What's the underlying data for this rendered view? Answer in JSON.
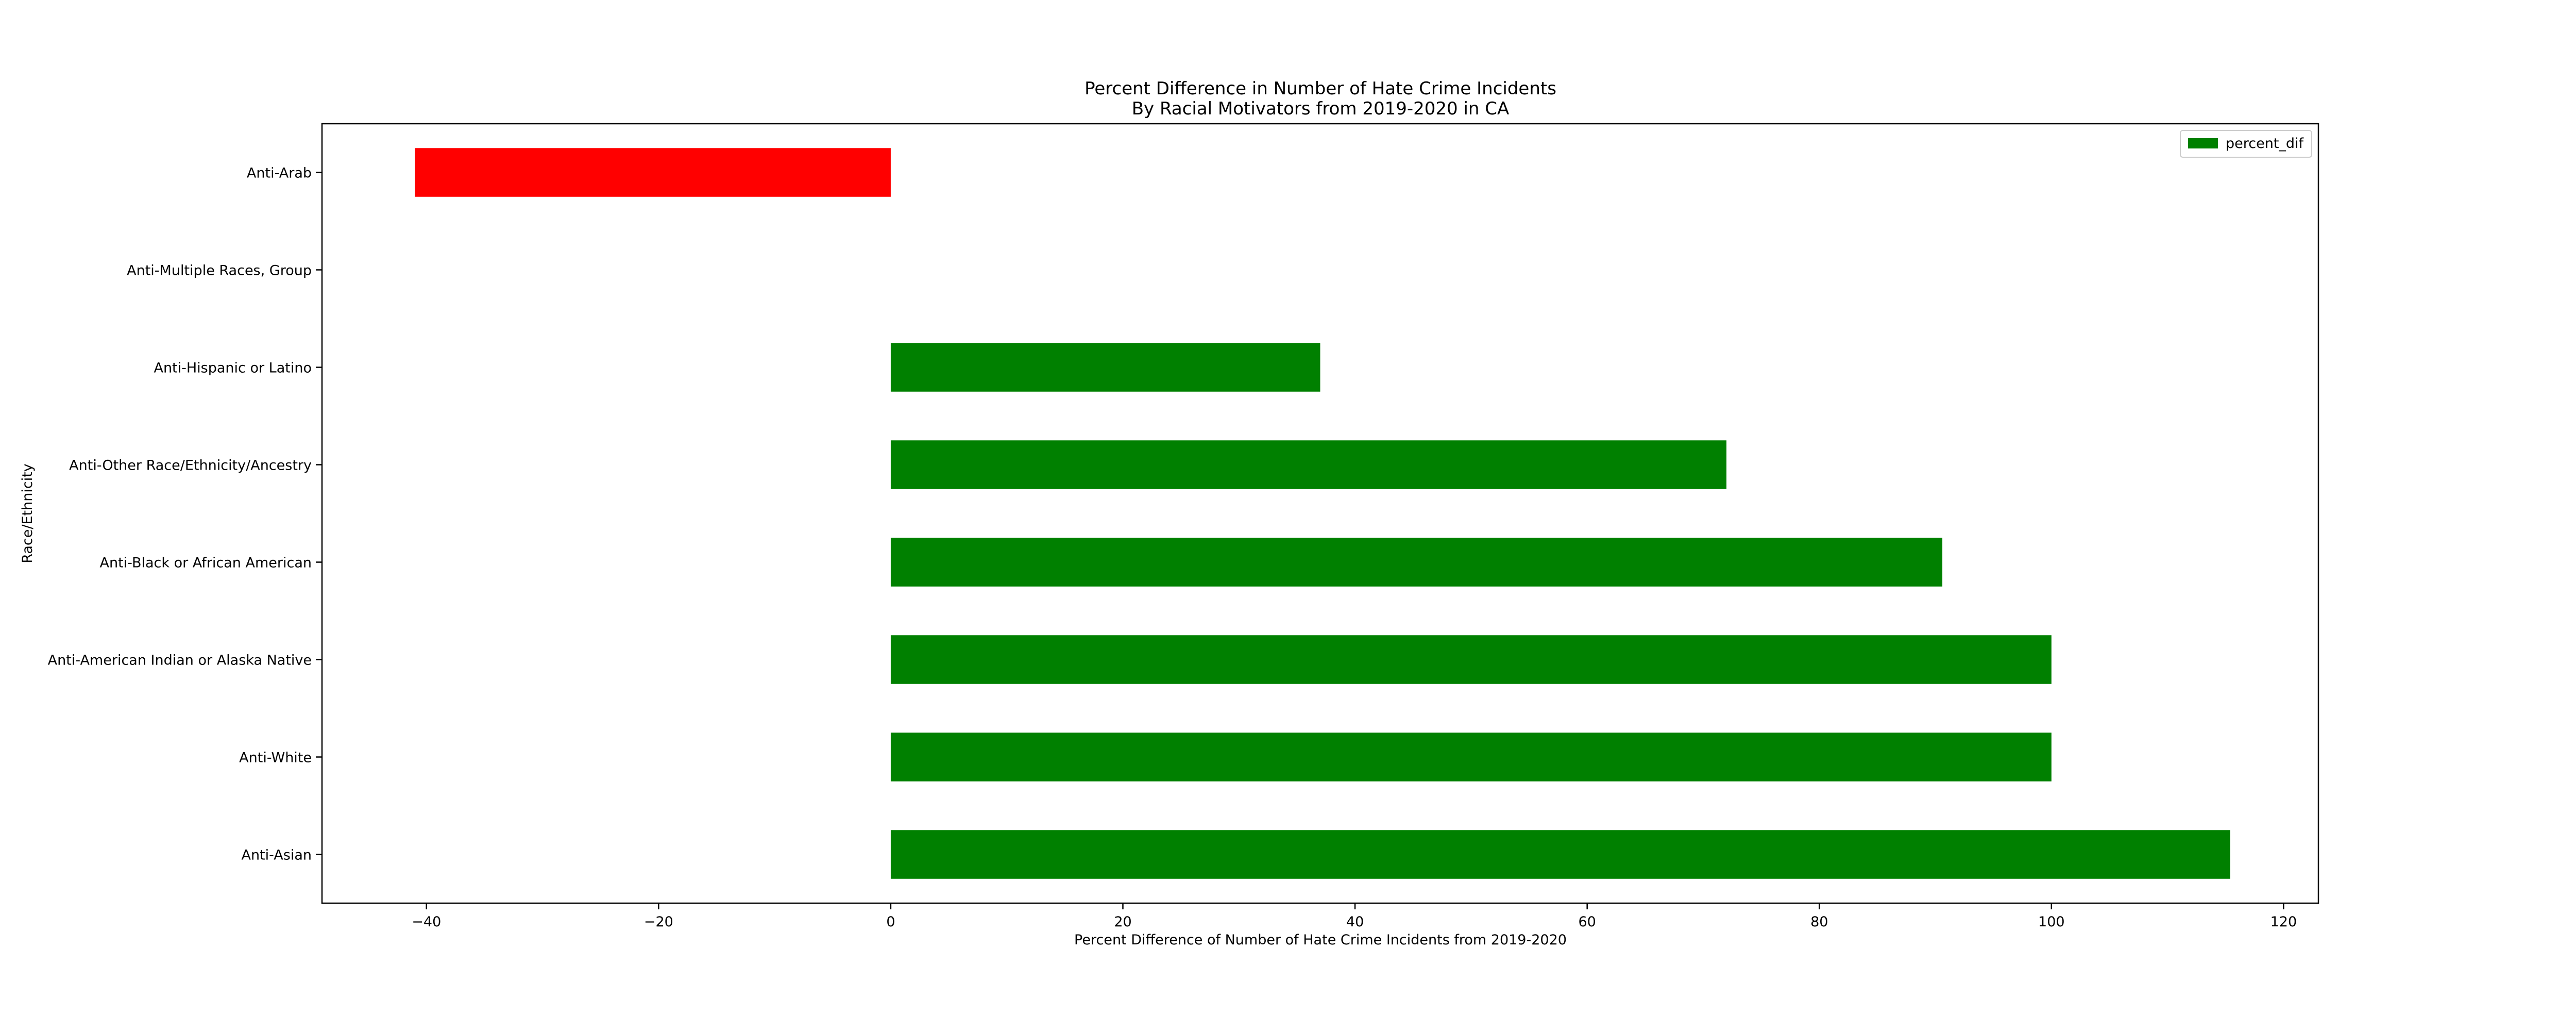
{
  "chart_data": {
    "type": "bar",
    "orientation": "horizontal",
    "title": "Percent Difference in Number of Hate Crime Incidents",
    "subtitle": "By Racial Motivators from 2019-2020 in CA",
    "xlabel": "Percent Difference of Number of Hate Crime Incidents from 2019-2020",
    "ylabel": "Race/Ethnicity",
    "xlim": [
      -49,
      123
    ],
    "xticks": [
      -40,
      -20,
      0,
      20,
      40,
      60,
      80,
      100,
      120
    ],
    "xtick_labels": [
      "−40",
      "−20",
      "0",
      "20",
      "40",
      "60",
      "80",
      "100",
      "120"
    ],
    "categories": [
      "Anti-Arab",
      "Anti-Multiple Races, Group",
      "Anti-Hispanic or Latino",
      "Anti-Other Race/Ethnicity/Ancestry",
      "Anti-Black or African American",
      "Anti-American Indian or Alaska Native",
      "Anti-White",
      "Anti-Asian"
    ],
    "series": [
      {
        "name": "percent_dif",
        "values": [
          -41.0,
          0.0,
          37.0,
          72.0,
          90.6,
          100.0,
          100.0,
          115.4
        ],
        "bar_colors": [
          "#ff0000",
          "#008000",
          "#008000",
          "#008000",
          "#008000",
          "#008000",
          "#008000",
          "#008000"
        ]
      }
    ],
    "legend": {
      "position": "top-right",
      "swatch_color": "#008000"
    },
    "grid": false
  }
}
